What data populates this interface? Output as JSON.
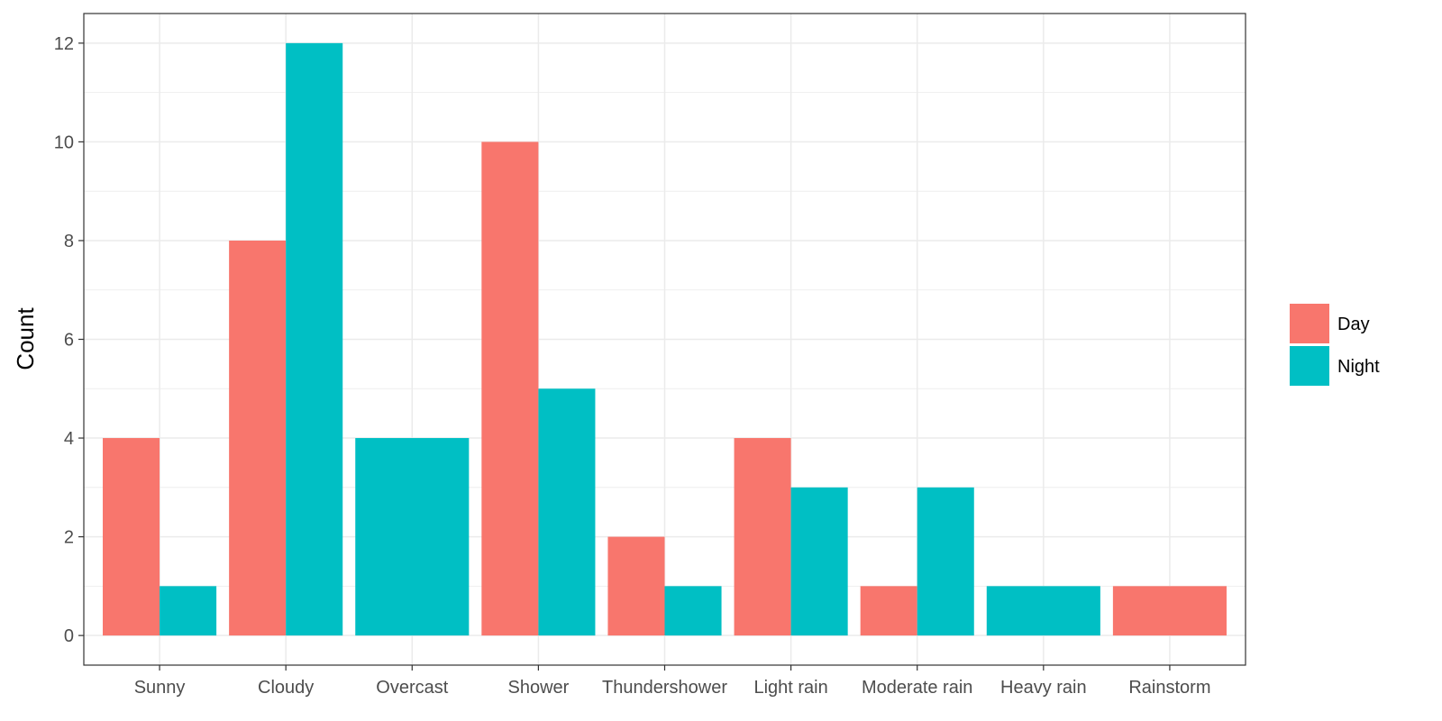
{
  "chart_data": {
    "type": "bar",
    "categories": [
      "Sunny",
      "Cloudy",
      "Overcast",
      "Shower",
      "Thundershower",
      "Light rain",
      "Moderate rain",
      "Heavy rain",
      "Rainstorm"
    ],
    "series": [
      {
        "name": "Day",
        "color": "#F8766D",
        "values": [
          4,
          8,
          0,
          10,
          2,
          4,
          1,
          0,
          1
        ]
      },
      {
        "name": "Night",
        "color": "#00BFC4",
        "values": [
          1,
          12,
          4,
          5,
          1,
          3,
          3,
          1,
          0
        ]
      }
    ],
    "ylabel": "Count",
    "xlabel": "",
    "ylim": [
      -0.6,
      12.6
    ],
    "yticks": [
      0,
      2,
      4,
      6,
      8,
      10,
      12
    ],
    "grid": true,
    "legend": "right",
    "position": "dodge"
  }
}
